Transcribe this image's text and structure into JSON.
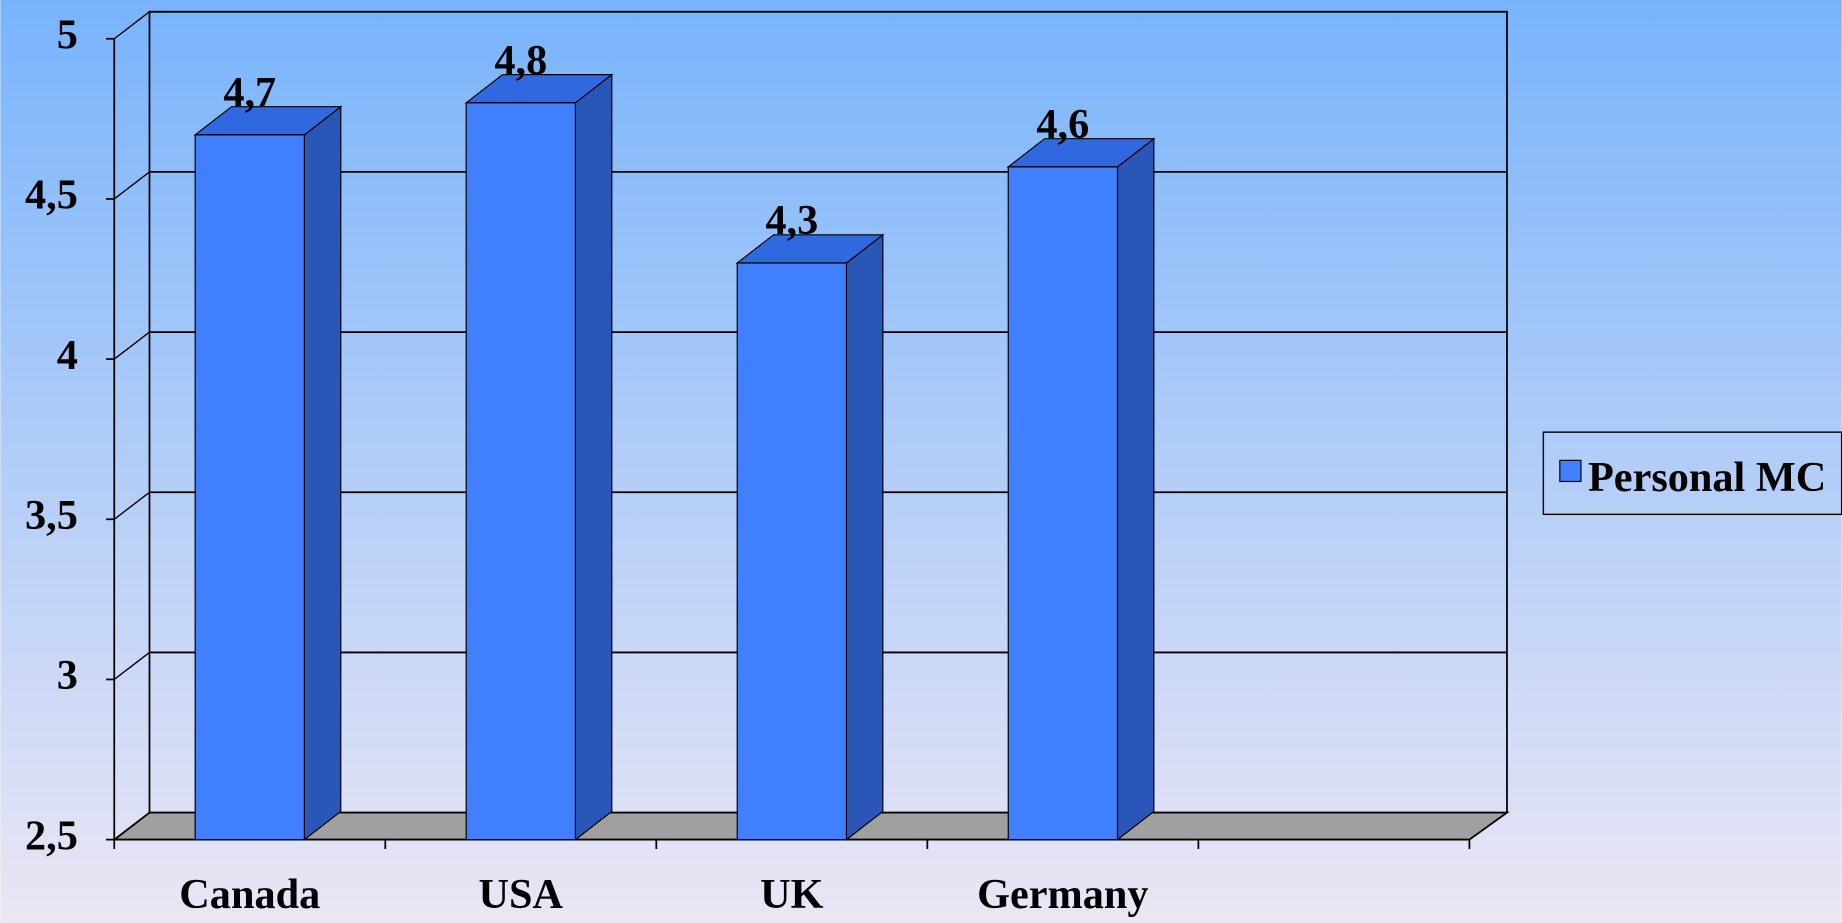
{
  "chart_data": {
    "type": "bar3d",
    "categories": [
      "Canada",
      "USA",
      "UK",
      "Germany",
      null
    ],
    "series": [
      {
        "name": "Personal MC",
        "color": "#4080ff",
        "values": [
          4.7,
          4.8,
          4.3,
          4.6,
          null
        ],
        "value_labels": [
          "4,7",
          "4,8",
          "4,3",
          "4,6",
          null
        ]
      }
    ],
    "ylim": [
      2.5,
      5
    ],
    "yticks": [
      {
        "value": 2.5,
        "label": "2,5"
      },
      3,
      {
        "value": 3.5,
        "label": "3,5"
      },
      4,
      {
        "value": 4.5,
        "label": "4,5"
      },
      5
    ],
    "grid": true,
    "legend": "right"
  }
}
